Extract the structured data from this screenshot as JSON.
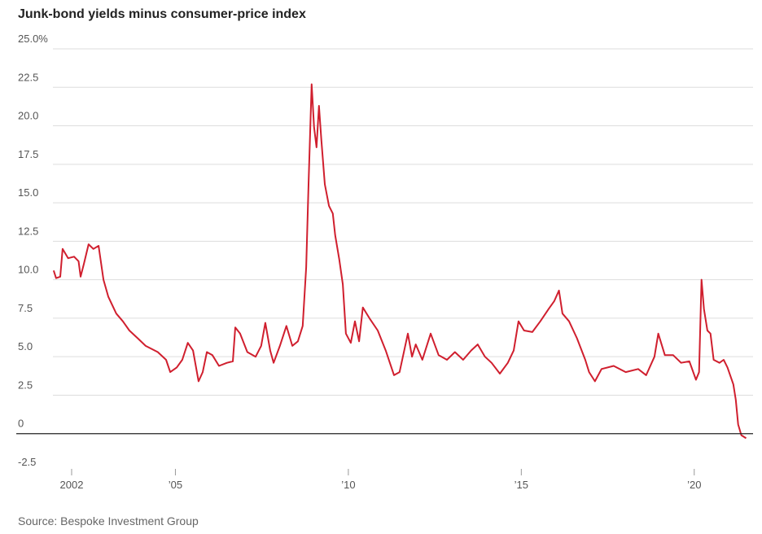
{
  "chart_data": {
    "type": "line",
    "title": "Junk-bond yields minus consumer-price index",
    "source": "Source: Bespoke Investment Group",
    "xlim": [
      2000.4,
      2021.7
    ],
    "xticks": [
      {
        "value": 2002,
        "label": "2002"
      },
      {
        "value": 2005,
        "label": "’05"
      },
      {
        "value": 2010,
        "label": "’10"
      },
      {
        "value": 2015,
        "label": "’15"
      },
      {
        "value": 2020,
        "label": "’20"
      }
    ],
    "ylim": [
      -2.5,
      25
    ],
    "yticks": [
      {
        "value": 25,
        "label": "25.0%"
      },
      22.5,
      {
        "value": 20,
        "label": "20.0"
      },
      17.5,
      {
        "value": 15,
        "label": "15.0"
      },
      12.5,
      {
        "value": 10,
        "label": "10.0"
      },
      7.5,
      {
        "value": 5,
        "label": "5.0"
      },
      2.5,
      0,
      -2.5
    ],
    "grid": true,
    "x": [
      2001.48,
      2001.55,
      2001.67,
      2001.74,
      2001.9,
      2002.07,
      2002.2,
      2002.26,
      2002.35,
      2002.49,
      2002.63,
      2002.78,
      2002.92,
      2003.06,
      2003.29,
      2003.48,
      2003.67,
      2003.91,
      2004.14,
      2004.49,
      2004.73,
      2004.85,
      2005.04,
      2005.2,
      2005.36,
      2005.51,
      2005.67,
      2005.79,
      2005.91,
      2006.07,
      2006.26,
      2006.49,
      2006.66,
      2006.73,
      2006.87,
      2007.08,
      2007.32,
      2007.48,
      2007.6,
      2007.74,
      2007.84,
      2008.02,
      2008.21,
      2008.38,
      2008.54,
      2008.68,
      2008.78,
      2008.85,
      2008.94,
      2009.01,
      2009.08,
      2009.15,
      2009.22,
      2009.32,
      2009.44,
      2009.55,
      2009.62,
      2009.74,
      2009.84,
      2009.93,
      2010.07,
      2010.19,
      2010.31,
      2010.42,
      2010.61,
      2010.85,
      2011.08,
      2011.32,
      2011.48,
      2011.72,
      2011.84,
      2011.95,
      2012.14,
      2012.38,
      2012.61,
      2012.85,
      2013.08,
      2013.32,
      2013.55,
      2013.74,
      2013.95,
      2014.14,
      2014.38,
      2014.61,
      2014.78,
      2014.92,
      2015.08,
      2015.32,
      2015.55,
      2015.79,
      2015.95,
      2016.09,
      2016.19,
      2016.38,
      2016.61,
      2016.85,
      2016.96,
      2017.13,
      2017.32,
      2017.67,
      2018.02,
      2018.38,
      2018.61,
      2018.85,
      2018.96,
      2019.15,
      2019.39,
      2019.62,
      2019.86,
      2020.05,
      2020.14,
      2020.21,
      2020.28,
      2020.38,
      2020.47,
      2020.56,
      2020.73,
      2020.85,
      2020.96,
      2021.13,
      2021.2,
      2021.27,
      2021.36,
      2021.5
    ],
    "series": [
      {
        "color": "#d01f2e",
        "values": [
          10.6,
          10.1,
          10.2,
          12.0,
          11.4,
          11.5,
          11.2,
          10.2,
          11.0,
          12.3,
          12.0,
          12.2,
          10.0,
          8.9,
          7.8,
          7.3,
          6.7,
          6.2,
          5.7,
          5.3,
          4.8,
          4.0,
          4.3,
          4.8,
          5.9,
          5.4,
          3.4,
          4.0,
          5.3,
          5.1,
          4.4,
          4.6,
          4.7,
          6.9,
          6.5,
          5.3,
          5.0,
          5.7,
          7.2,
          5.4,
          4.6,
          5.7,
          7.0,
          5.7,
          6.0,
          7.0,
          10.8,
          16.2,
          22.7,
          19.9,
          18.6,
          21.3,
          19.1,
          16.2,
          14.8,
          14.3,
          12.9,
          11.3,
          9.7,
          6.5,
          5.9,
          7.3,
          6.0,
          8.2,
          7.5,
          6.7,
          5.4,
          3.8,
          4.0,
          6.5,
          5.0,
          5.8,
          4.8,
          6.5,
          5.1,
          4.8,
          5.3,
          4.8,
          5.4,
          5.8,
          5.0,
          4.6,
          3.9,
          4.6,
          5.4,
          7.3,
          6.7,
          6.6,
          7.3,
          8.1,
          8.6,
          9.3,
          7.8,
          7.3,
          6.2,
          4.8,
          4.0,
          3.4,
          4.2,
          4.4,
          4.0,
          4.2,
          3.8,
          5.0,
          6.5,
          5.1,
          5.1,
          4.6,
          4.7,
          3.5,
          4.0,
          10.0,
          8.1,
          6.7,
          6.5,
          4.8,
          4.6,
          4.8,
          4.3,
          3.2,
          2.2,
          0.6,
          -0.1,
          -0.3
        ]
      }
    ]
  }
}
